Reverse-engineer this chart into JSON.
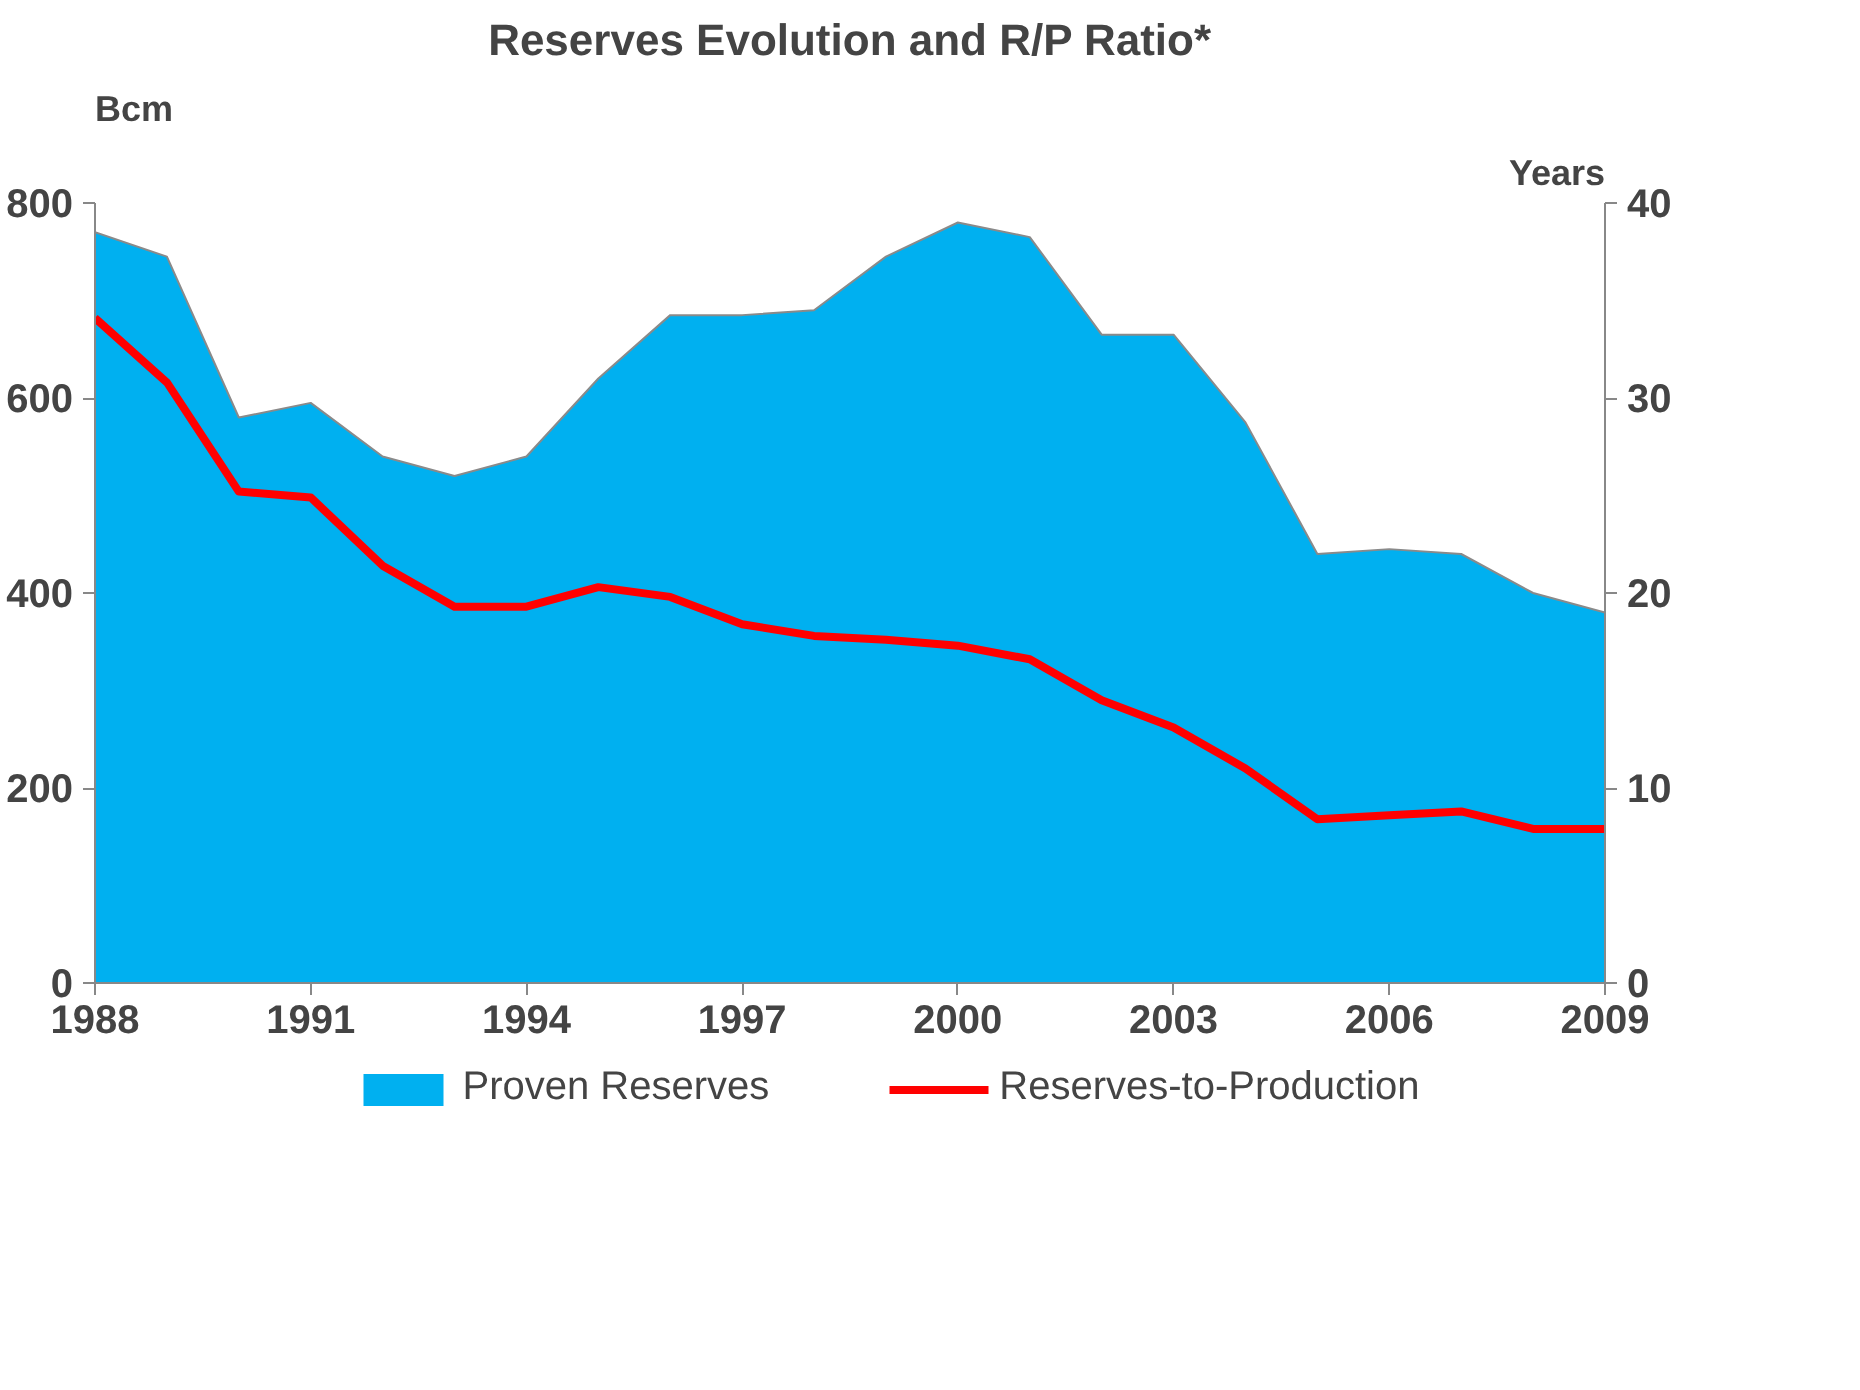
{
  "chart_data": {
    "type": "area",
    "title": "Reserves Evolution and R/P Ratio*",
    "ylabel": "Bcm",
    "y2label": "Years",
    "x": [
      1988,
      1989,
      1990,
      1991,
      1992,
      1993,
      1994,
      1995,
      1996,
      1997,
      1998,
      1999,
      2000,
      2001,
      2002,
      2003,
      2004,
      2005,
      2006,
      2007,
      2008,
      2009
    ],
    "series": [
      {
        "name": "Proven Reserves",
        "color": "#00b0f0",
        "values": [
          770,
          745,
          580,
          595,
          540,
          520,
          540,
          620,
          685,
          685,
          690,
          745,
          780,
          765,
          665,
          665,
          575,
          440,
          445,
          440,
          400,
          380
        ]
      },
      {
        "name": "Reserves-to-Production",
        "type": "line",
        "axis": "y2",
        "color": "#ff0000",
        "values": [
          34.1,
          30.8,
          25.2,
          24.9,
          21.4,
          19.3,
          19.3,
          20.3,
          19.8,
          18.4,
          17.8,
          17.6,
          17.3,
          16.6,
          14.5,
          13.1,
          11.0,
          8.4,
          8.6,
          8.8,
          7.9,
          7.9
        ]
      }
    ],
    "xlim": [
      1988,
      2009
    ],
    "xticks": [
      1988,
      1991,
      1994,
      1997,
      2000,
      2003,
      2006,
      2009
    ],
    "ylim": [
      0,
      800
    ],
    "yticks": [
      0,
      200,
      400,
      600,
      800
    ],
    "y2lim": [
      0,
      40
    ],
    "y2ticks": [
      0,
      10,
      20,
      30,
      40
    ],
    "grid": false,
    "legend": "bottom",
    "line_style": "solid",
    "marker": "none"
  }
}
